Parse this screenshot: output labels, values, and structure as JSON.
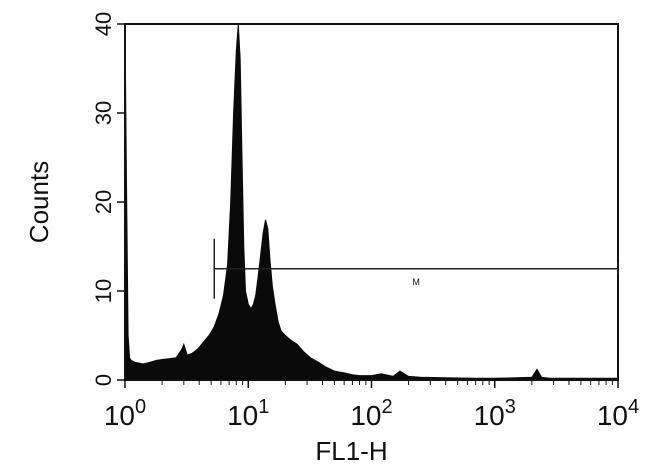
{
  "chart_data": {
    "type": "area",
    "xlabel": "FL1-H",
    "ylabel": "Counts",
    "x_scale": "log",
    "xlim": [
      1,
      10000
    ],
    "ylim": [
      0,
      40
    ],
    "x_ticks": [
      {
        "value": 1,
        "base": "10",
        "exp": "0"
      },
      {
        "value": 10,
        "base": "10",
        "exp": "1"
      },
      {
        "value": 100,
        "base": "10",
        "exp": "2"
      },
      {
        "value": 1000,
        "base": "10",
        "exp": "3"
      },
      {
        "value": 10000,
        "base": "10",
        "exp": "4"
      }
    ],
    "y_ticks": [
      {
        "value": 0,
        "label": "0"
      },
      {
        "value": 10,
        "label": "10"
      },
      {
        "value": 20,
        "label": "20"
      },
      {
        "value": 30,
        "label": "30"
      },
      {
        "value": 40,
        "label": "40"
      }
    ],
    "series": [
      {
        "x": [
          1.0,
          1.03,
          1.06,
          1.09,
          1.12,
          1.2,
          1.4,
          1.6,
          1.8,
          2.0,
          2.3,
          2.6,
          2.9,
          3.0,
          3.2,
          3.5,
          3.9,
          4.3,
          4.8,
          5.3,
          5.8,
          6.3,
          6.8,
          7.2,
          7.6,
          8.0,
          8.3,
          8.6,
          8.9,
          9.2,
          9.5,
          10.0,
          10.5,
          11.0,
          11.5,
          12.0,
          12.6,
          13.2,
          13.8,
          14.4,
          15.0,
          15.7,
          16.5,
          17.5,
          18.5,
          20.0,
          22.0,
          25.0,
          28.0,
          32.0,
          37.0,
          42.0,
          50.0,
          60.0,
          70.0,
          80.0,
          100.0,
          120.0,
          150.0,
          170.0,
          200.0,
          250.0,
          400.0,
          700.0,
          1000.0,
          1500.0,
          2000.0,
          2200.0,
          2400.0,
          2800.0,
          4000.0,
          7000.0,
          10000.0
        ],
        "y": [
          40,
          21,
          5,
          2.5,
          2.2,
          2.0,
          1.8,
          2.0,
          2.2,
          2.3,
          2.4,
          2.5,
          3.5,
          4.0,
          2.8,
          3.0,
          3.5,
          4.2,
          5.0,
          6.0,
          7.5,
          9.5,
          13.0,
          20.0,
          30.0,
          37.0,
          40.0,
          36.0,
          25.0,
          15.0,
          10.0,
          8.5,
          8.0,
          8.5,
          9.5,
          11.5,
          14.0,
          16.5,
          18.0,
          17.0,
          13.5,
          10.5,
          8.5,
          6.5,
          5.5,
          5.0,
          4.5,
          4.0,
          3.2,
          2.5,
          2.0,
          1.5,
          1.0,
          0.8,
          0.6,
          0.5,
          0.5,
          0.7,
          0.4,
          1.0,
          0.4,
          0.3,
          0.25,
          0.2,
          0.2,
          0.25,
          0.3,
          1.2,
          0.3,
          0.2,
          0.2,
          0.2,
          0.2
        ]
      }
    ],
    "gate": {
      "label": "M",
      "x_start": 5.3,
      "x_end": 10000,
      "y": 12.5
    },
    "grid": false,
    "legend": "none"
  }
}
